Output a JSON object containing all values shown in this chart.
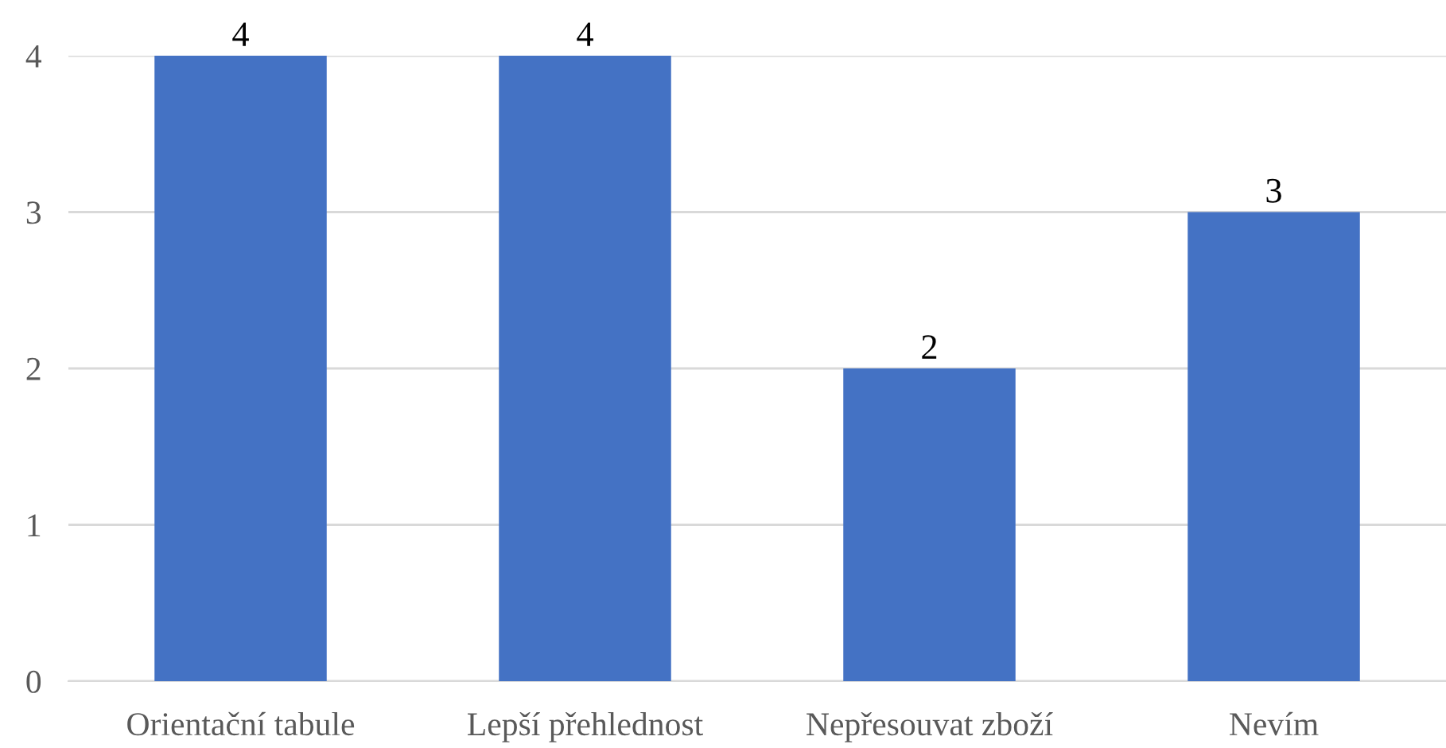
{
  "chart_data": {
    "type": "bar",
    "categories": [
      "Orientační tabule",
      "Lepší přehlednost",
      "Nepřesouvat zboží",
      "Nevím"
    ],
    "values": [
      4,
      4,
      2,
      3
    ],
    "color": "#4472c4",
    "ylim": [
      0,
      4
    ],
    "yticks": [
      0,
      1,
      2,
      3,
      4
    ],
    "grid": "y",
    "data_labels": true
  }
}
